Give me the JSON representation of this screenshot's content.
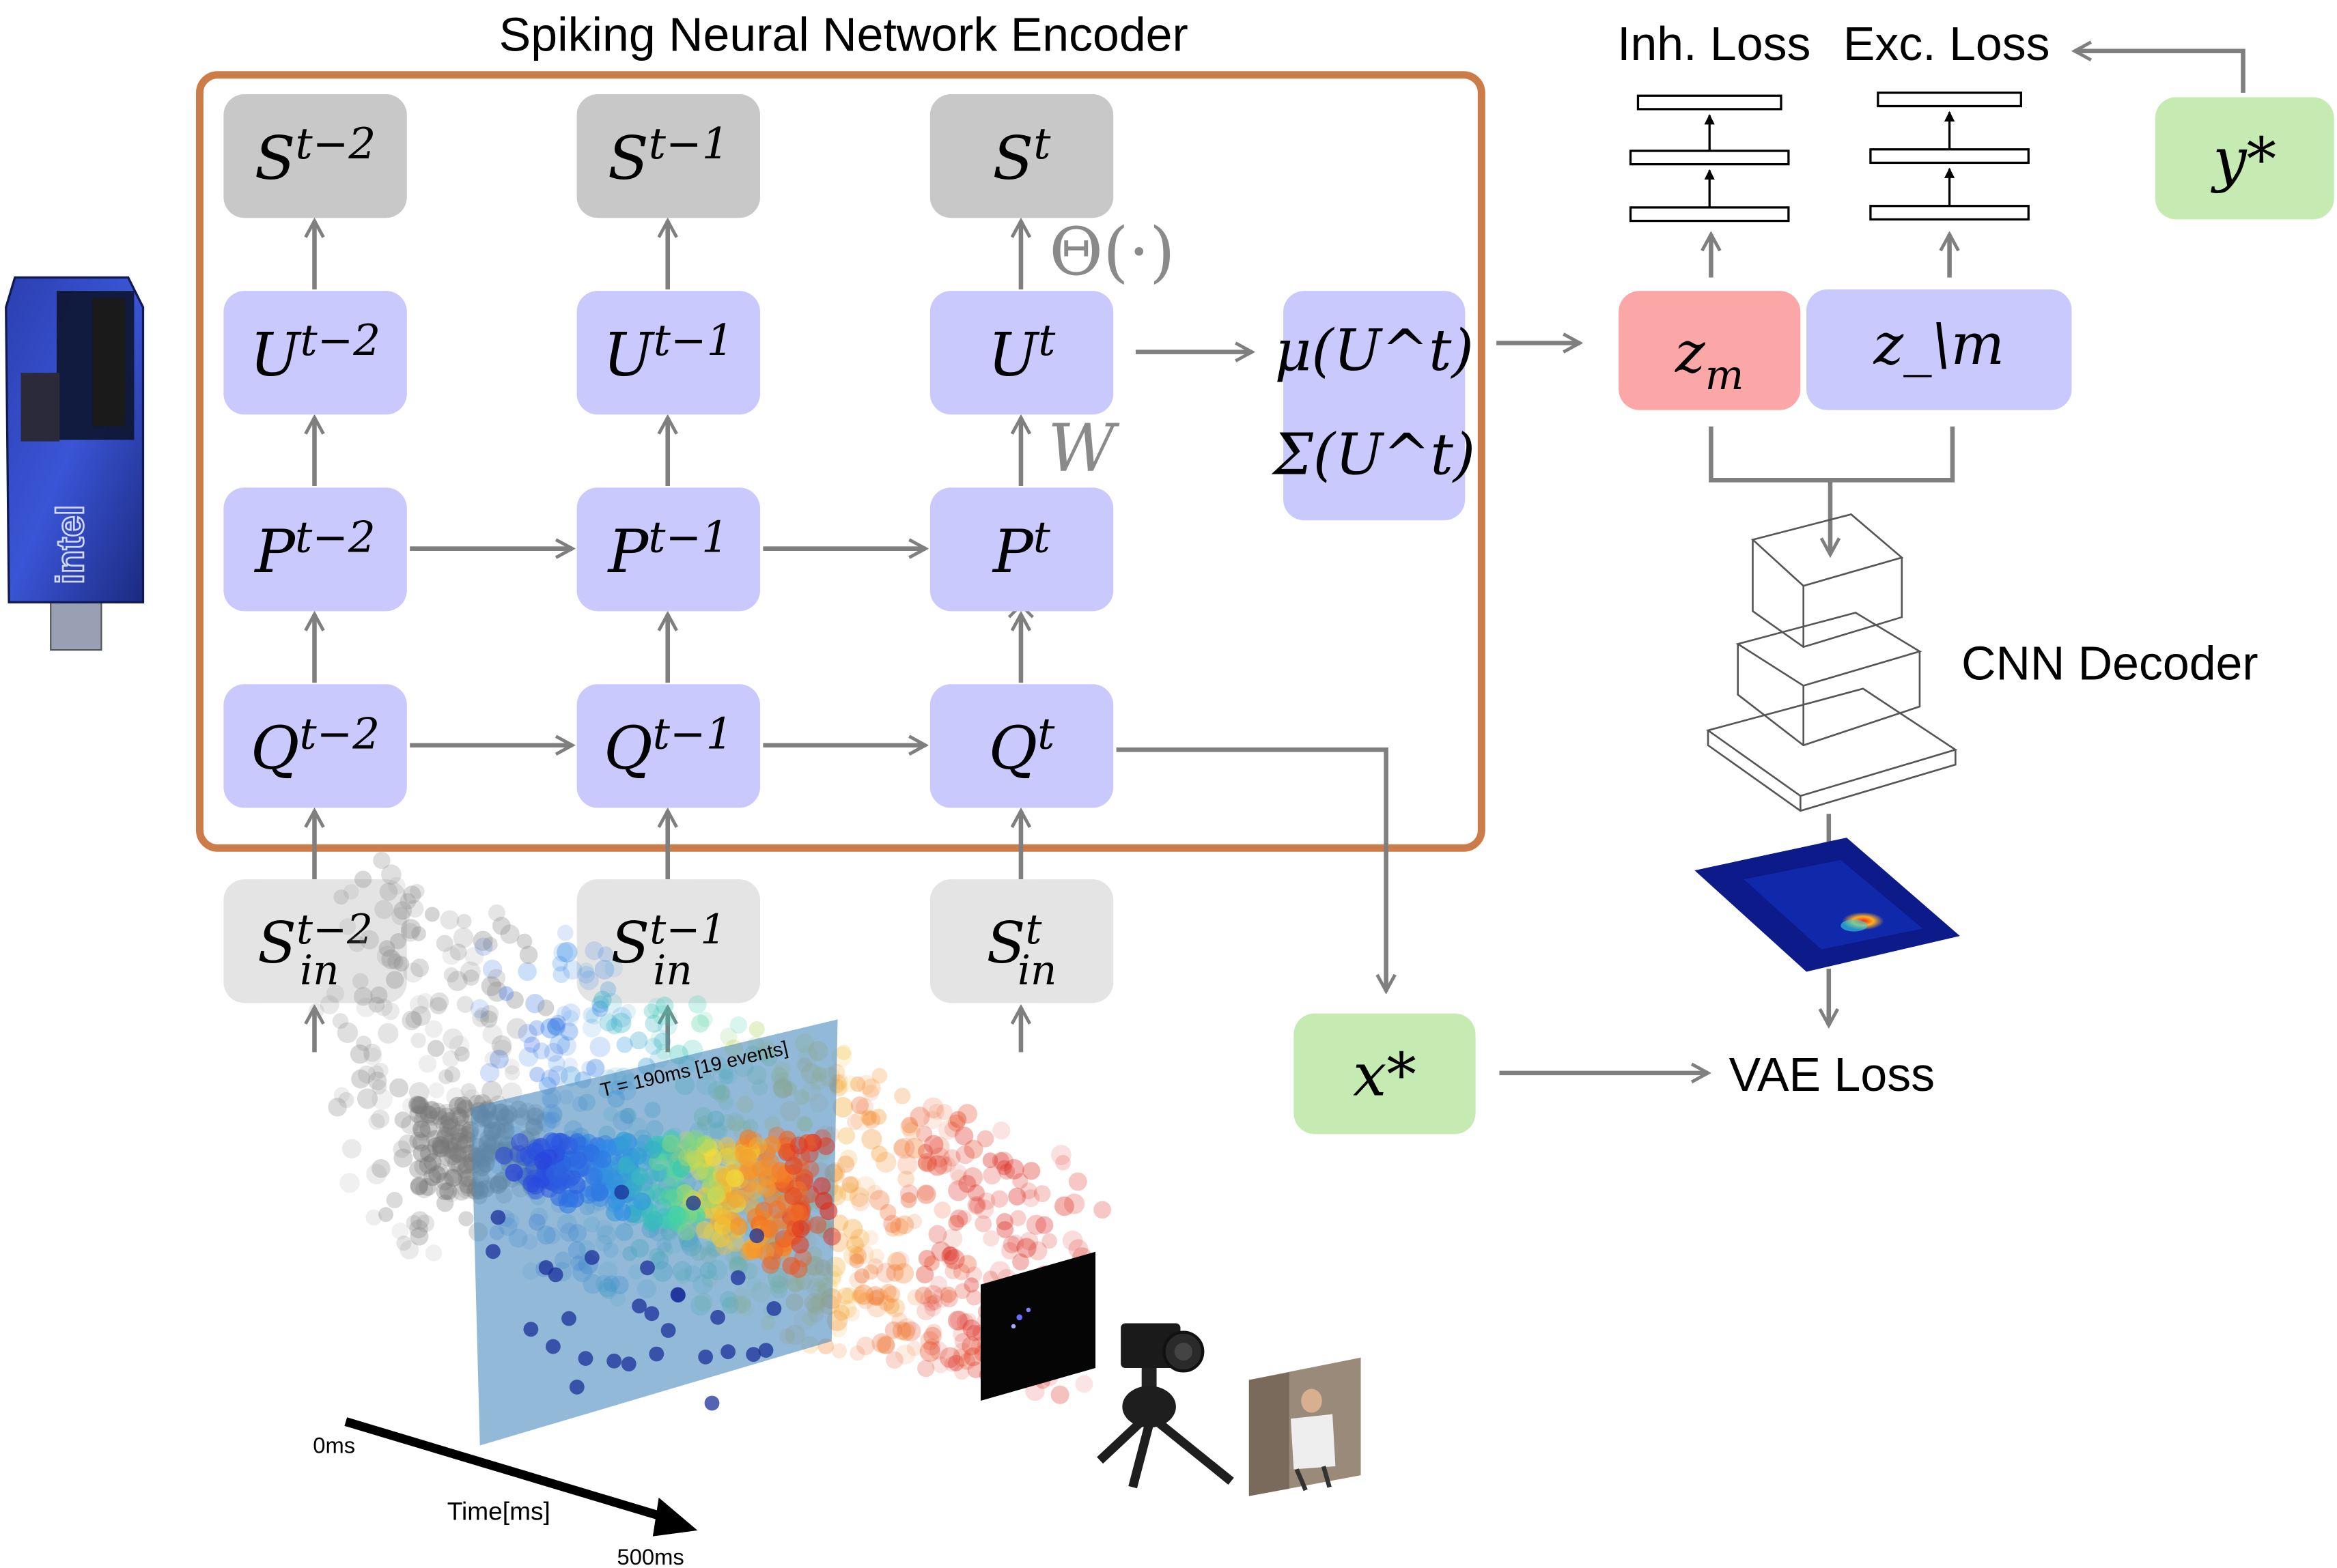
{
  "title": "Spiking Neural Network Encoder",
  "labels": {
    "inh_loss": "Inh. Loss",
    "exc_loss": "Exc. Loss",
    "cnn_decoder": "CNN Decoder",
    "vae_loss": "VAE Loss",
    "theta": "Θ(·)",
    "w": "W"
  },
  "nodes": {
    "S": [
      "S^{t−2}",
      "S^{t−1}",
      "S^{t}"
    ],
    "U": [
      "U^{t−2}",
      "U^{t−1}",
      "U^{t}"
    ],
    "P": [
      "P^{t−2}",
      "P^{t−1}",
      "P^{t}"
    ],
    "Q": [
      "Q^{t−2}",
      "Q^{t−1}",
      "Q^{t}"
    ],
    "Sin": [
      "S_in^{t−2}",
      "S_in^{t−1}",
      "S_in^{t}"
    ],
    "mu": "μ(U^t)",
    "sigma": "Σ(U^t)",
    "zm": "z_m",
    "znm": "z_\\m",
    "xstar": "x*",
    "ystar": "y*"
  },
  "event_plot": {
    "slice_label": "T = 190ms [19 events]",
    "axis_label": "Time[ms]",
    "start_tick": "0ms",
    "end_tick": "500ms"
  },
  "hardware": {
    "chip_label": "intel"
  },
  "colors": {
    "encoder_border": "#cc7c48",
    "node_purple": "#c9c9fd",
    "node_gray_dark": "#c8c8c8",
    "node_gray_light": "#e4e4e4",
    "node_green": "#c6ebb2",
    "node_red": "#fca7a7",
    "arrow": "#7f7f7f"
  }
}
